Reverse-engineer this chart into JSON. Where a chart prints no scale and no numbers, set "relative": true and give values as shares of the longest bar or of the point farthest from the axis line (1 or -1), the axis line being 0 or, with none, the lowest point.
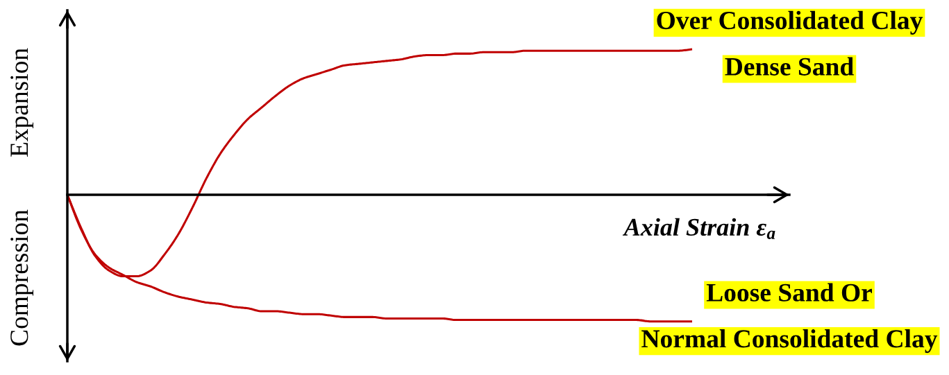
{
  "chart_data": {
    "type": "line",
    "relative": true,
    "xlabel": "Axial Strain ε$_{a}$",
    "annotations": [
      "Expansion",
      "Compression"
    ],
    "categories": [
      null,
      null,
      null,
      null,
      null,
      null,
      null,
      null,
      null,
      null,
      null,
      null,
      null,
      null,
      null,
      null,
      null,
      null,
      null,
      null,
      null,
      null,
      null,
      null,
      null,
      null,
      null,
      null,
      null,
      null,
      null,
      null,
      null,
      null,
      null,
      null,
      null,
      null,
      null,
      null,
      null,
      null,
      null,
      null,
      null,
      null,
      null,
      null,
      null,
      null,
      null,
      null,
      null
    ],
    "series": [
      {
        "name": "Over Consolidated Clay\nDense Sand",
        "color": "#c00000",
        "values": [
          0,
          -0.23,
          -0.42,
          -0.52,
          -0.56,
          -0.56,
          -0.52,
          -0.41,
          -0.27,
          -0.09,
          0.11,
          0.28,
          0.41,
          0.52,
          0.6,
          0.68,
          0.75,
          0.8,
          0.83,
          0.86,
          0.89,
          0.9,
          0.91,
          0.92,
          0.93,
          0.95,
          0.96,
          0.96,
          0.97,
          0.97,
          0.98,
          0.98,
          0.98,
          0.99,
          0.99,
          0.99,
          0.99,
          0.99,
          0.99,
          0.99,
          0.99,
          0.99,
          0.99,
          0.99,
          0.99,
          1.0,
          null,
          null,
          null,
          null,
          null,
          null,
          null
        ]
      },
      {
        "name": "Loose Sand Or\nNormal Consolidated Clay",
        "color": "#c00000",
        "values": [
          0,
          -0.24,
          -0.41,
          -0.5,
          -0.55,
          -0.6,
          -0.63,
          -0.67,
          -0.7,
          -0.72,
          -0.74,
          -0.75,
          -0.77,
          -0.78,
          -0.8,
          -0.8,
          -0.81,
          -0.82,
          -0.82,
          -0.83,
          -0.84,
          -0.84,
          -0.84,
          -0.85,
          -0.85,
          -0.85,
          -0.85,
          -0.85,
          -0.86,
          -0.86,
          -0.86,
          -0.86,
          -0.86,
          -0.86,
          -0.86,
          -0.86,
          -0.86,
          -0.86,
          -0.86,
          -0.86,
          -0.86,
          -0.86,
          -0.87,
          -0.87,
          -0.87,
          -0.87,
          null,
          null,
          null,
          null,
          null,
          null,
          null
        ]
      }
    ],
    "line_style": "solid"
  }
}
